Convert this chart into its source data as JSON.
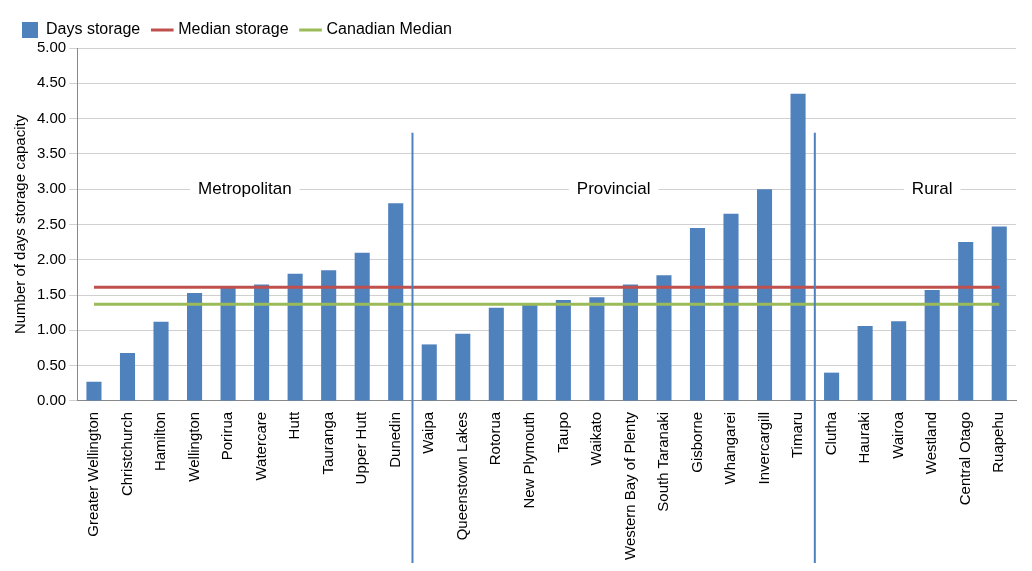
{
  "chart_data": {
    "type": "bar",
    "ylabel": "Number of days storage capacity",
    "categories": [
      "Greater Wellington",
      "Christchurch",
      "Hamilton",
      "Wellington",
      "Porirua",
      "Watercare",
      "Hutt",
      "Tauranga",
      "Upper Hutt",
      "Dunedin",
      "Waipa",
      "Queenstown Lakes",
      "Rotorua",
      "New Plymouth",
      "Taupo",
      "Waikato",
      "Western Bay of Plenty",
      "South Taranaki",
      "Gisborne",
      "Whangarei",
      "Invercargill",
      "Timaru",
      "Clutha",
      "Hauraki",
      "Wairoa",
      "Westland",
      "Central Otago",
      "Ruapehu"
    ],
    "series": [
      {
        "name": "Days storage",
        "color": "#4f81bd",
        "values": [
          0.27,
          0.68,
          1.12,
          1.53,
          1.6,
          1.65,
          1.8,
          1.85,
          2.1,
          2.8,
          0.8,
          0.95,
          1.32,
          1.38,
          1.43,
          1.47,
          1.65,
          1.78,
          2.45,
          2.65,
          3.0,
          4.35,
          0.4,
          1.06,
          1.13,
          1.57,
          2.25,
          2.47
        ]
      },
      {
        "name": "Median storage",
        "type": "line",
        "color": "#c0504d",
        "values": [
          1.61,
          1.61,
          1.61,
          1.61,
          1.61,
          1.61,
          1.61,
          1.61,
          1.61,
          1.61,
          1.61,
          1.61,
          1.61,
          1.61,
          1.61,
          1.61,
          1.61,
          1.61,
          1.61,
          1.61,
          1.61,
          1.61,
          1.61,
          1.61,
          1.61,
          1.61,
          1.61,
          1.61
        ]
      },
      {
        "name": "Canadian Median",
        "type": "line",
        "color": "#9bbb59",
        "values": [
          1.37,
          1.37,
          1.37,
          1.37,
          1.37,
          1.37,
          1.37,
          1.37,
          1.37,
          1.37,
          1.37,
          1.37,
          1.37,
          1.37,
          1.37,
          1.37,
          1.37,
          1.37,
          1.37,
          1.37,
          1.37,
          1.37,
          1.37,
          1.37,
          1.37,
          1.37,
          1.37,
          1.37
        ]
      }
    ],
    "ylim": [
      0,
      5
    ],
    "yticks": [
      {
        "value": 0,
        "label": "0.00"
      },
      {
        "value": 0.5,
        "label": "0.50"
      },
      {
        "value": 1,
        "label": "1.00"
      },
      {
        "value": 1.5,
        "label": "1.50"
      },
      {
        "value": 2,
        "label": "2.00"
      },
      {
        "value": 2.5,
        "label": "2.50"
      },
      {
        "value": 3,
        "label": "3.00"
      },
      {
        "value": 3.5,
        "label": "3.50"
      },
      {
        "value": 4,
        "label": "4.00"
      },
      {
        "value": 4.5,
        "label": "4.50"
      },
      {
        "value": 5,
        "label": "5.00"
      }
    ],
    "ref_lines": [
      {
        "axis": "x",
        "value": "Waipa",
        "color": "#4f81bd"
      },
      {
        "axis": "x",
        "value": "Clutha",
        "color": "#4f81bd"
      }
    ],
    "grid": "y",
    "legend": "top left",
    "marker": "none",
    "annotations": [
      "Metropolitan",
      "Provincial",
      "Rural"
    ]
  }
}
